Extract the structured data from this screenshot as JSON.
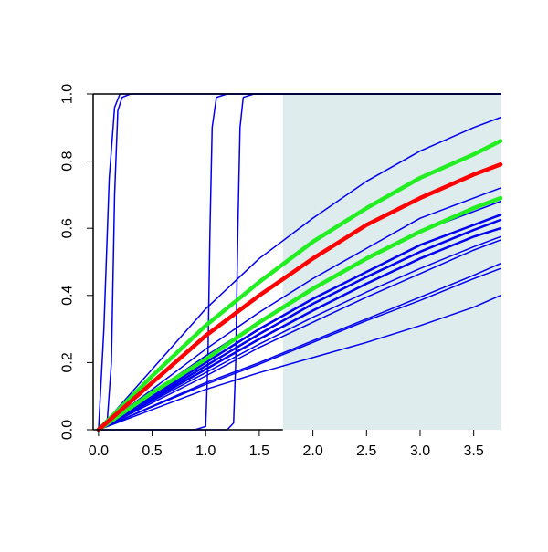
{
  "chart_data": {
    "type": "line",
    "title": "",
    "xlabel": "",
    "ylabel": "",
    "xlim": [
      -0.05,
      3.75
    ],
    "ylim": [
      0,
      1.0
    ],
    "x_ticks": [
      0.0,
      0.5,
      1.0,
      1.5,
      2.0,
      2.5,
      3.0,
      3.5
    ],
    "x_tick_labels": [
      "0.0",
      "0.5",
      "1.0",
      "1.5",
      "2.0",
      "2.5",
      "3.0",
      "3.5"
    ],
    "y_ticks": [
      0.0,
      0.2,
      0.4,
      0.6,
      0.8,
      1.0
    ],
    "y_tick_labels": [
      "0.0",
      "0.2",
      "0.4",
      "0.6",
      "0.8",
      "1.0"
    ],
    "grid": false,
    "legend": "none",
    "shaded_region": {
      "x_from": 1.72,
      "x_to": 3.75,
      "color": "#deeced"
    },
    "colors": {
      "curves": "#0000ee",
      "highlight_red": "#ff0000",
      "highlight_green": "#22ee22",
      "axis": "#000000"
    },
    "series": [
      {
        "color": "#0000ee",
        "width": 1.5,
        "points": [
          [
            0,
            0
          ],
          [
            0.05,
            0.3
          ],
          [
            0.1,
            0.75
          ],
          [
            0.15,
            0.96
          ],
          [
            0.2,
            1.0
          ],
          [
            3.75,
            1.0
          ]
        ]
      },
      {
        "color": "#0000ee",
        "width": 1.5,
        "points": [
          [
            0,
            0
          ],
          [
            0.08,
            0.02
          ],
          [
            0.12,
            0.2
          ],
          [
            0.15,
            0.7
          ],
          [
            0.18,
            0.95
          ],
          [
            0.22,
            0.99
          ],
          [
            0.3,
            1.0
          ],
          [
            3.75,
            1.0
          ]
        ]
      },
      {
        "color": "#0000ee",
        "width": 1.5,
        "points": [
          [
            0,
            0
          ],
          [
            0.9,
            0.0
          ],
          [
            1.0,
            0.01
          ],
          [
            1.02,
            0.2
          ],
          [
            1.04,
            0.6
          ],
          [
            1.06,
            0.9
          ],
          [
            1.1,
            0.99
          ],
          [
            1.2,
            1.0
          ],
          [
            3.75,
            1.0
          ]
        ]
      },
      {
        "color": "#0000ee",
        "width": 1.5,
        "points": [
          [
            0,
            0
          ],
          [
            1.2,
            0.0
          ],
          [
            1.26,
            0.02
          ],
          [
            1.28,
            0.2
          ],
          [
            1.3,
            0.6
          ],
          [
            1.32,
            0.9
          ],
          [
            1.35,
            0.99
          ],
          [
            1.45,
            1.0
          ],
          [
            3.75,
            1.0
          ]
        ]
      },
      {
        "color": "#0000ee",
        "width": 1.5,
        "points": [
          [
            0,
            0
          ],
          [
            0.5,
            0.18
          ],
          [
            1.0,
            0.36
          ],
          [
            1.5,
            0.51
          ],
          [
            2.0,
            0.63
          ],
          [
            2.5,
            0.74
          ],
          [
            3.0,
            0.83
          ],
          [
            3.5,
            0.9
          ],
          [
            3.75,
            0.93
          ]
        ]
      },
      {
        "color": "#0000ee",
        "width": 1.5,
        "points": [
          [
            0,
            0
          ],
          [
            0.5,
            0.12
          ],
          [
            1.0,
            0.24
          ],
          [
            1.5,
            0.35
          ],
          [
            2.0,
            0.45
          ],
          [
            2.5,
            0.54
          ],
          [
            3.0,
            0.63
          ],
          [
            3.5,
            0.69
          ],
          [
            3.75,
            0.72
          ]
        ]
      },
      {
        "color": "#0000ee",
        "width": 1.5,
        "points": [
          [
            0,
            0
          ],
          [
            0.5,
            0.11
          ],
          [
            1.0,
            0.22
          ],
          [
            1.5,
            0.32
          ],
          [
            2.0,
            0.42
          ],
          [
            2.5,
            0.51
          ],
          [
            3.0,
            0.59
          ],
          [
            3.5,
            0.65
          ],
          [
            3.75,
            0.68
          ]
        ]
      },
      {
        "color": "#0000ee",
        "width": 2.5,
        "points": [
          [
            0,
            0
          ],
          [
            0.5,
            0.1
          ],
          [
            1.0,
            0.2
          ],
          [
            1.5,
            0.3
          ],
          [
            2.0,
            0.39
          ],
          [
            2.5,
            0.47
          ],
          [
            3.0,
            0.55
          ],
          [
            3.5,
            0.61
          ],
          [
            3.75,
            0.64
          ]
        ]
      },
      {
        "color": "#0000ee",
        "width": 2.5,
        "points": [
          [
            0,
            0
          ],
          [
            0.5,
            0.095
          ],
          [
            1.0,
            0.19
          ],
          [
            1.5,
            0.285
          ],
          [
            2.0,
            0.375
          ],
          [
            2.5,
            0.455
          ],
          [
            3.0,
            0.53
          ],
          [
            3.5,
            0.595
          ],
          [
            3.75,
            0.625
          ]
        ]
      },
      {
        "color": "#0000ee",
        "width": 2.5,
        "points": [
          [
            0,
            0
          ],
          [
            0.5,
            0.09
          ],
          [
            1.0,
            0.18
          ],
          [
            1.5,
            0.27
          ],
          [
            2.0,
            0.355
          ],
          [
            2.5,
            0.435
          ],
          [
            3.0,
            0.51
          ],
          [
            3.5,
            0.575
          ],
          [
            3.75,
            0.6
          ]
        ]
      },
      {
        "color": "#0000ee",
        "width": 1.5,
        "points": [
          [
            0,
            0
          ],
          [
            0.5,
            0.085
          ],
          [
            1.0,
            0.17
          ],
          [
            1.5,
            0.255
          ],
          [
            2.0,
            0.335
          ],
          [
            2.5,
            0.41
          ],
          [
            3.0,
            0.48
          ],
          [
            3.5,
            0.545
          ],
          [
            3.75,
            0.575
          ]
        ]
      },
      {
        "color": "#0000ee",
        "width": 1.5,
        "points": [
          [
            0,
            0
          ],
          [
            0.5,
            0.08
          ],
          [
            1.0,
            0.16
          ],
          [
            1.5,
            0.245
          ],
          [
            2.0,
            0.32
          ],
          [
            2.5,
            0.395
          ],
          [
            3.0,
            0.465
          ],
          [
            3.5,
            0.535
          ],
          [
            3.75,
            0.565
          ]
        ]
      },
      {
        "color": "#0000ee",
        "width": 1.5,
        "points": [
          [
            0,
            0
          ],
          [
            0.5,
            0.07
          ],
          [
            1.0,
            0.14
          ],
          [
            1.5,
            0.2
          ],
          [
            2.0,
            0.265
          ],
          [
            2.5,
            0.33
          ],
          [
            3.0,
            0.395
          ],
          [
            3.5,
            0.46
          ],
          [
            3.75,
            0.495
          ]
        ]
      },
      {
        "color": "#0000ee",
        "width": 1.5,
        "points": [
          [
            0,
            0
          ],
          [
            0.5,
            0.068
          ],
          [
            1.0,
            0.135
          ],
          [
            1.5,
            0.195
          ],
          [
            2.0,
            0.26
          ],
          [
            2.5,
            0.325
          ],
          [
            3.0,
            0.385
          ],
          [
            3.5,
            0.45
          ],
          [
            3.75,
            0.48
          ]
        ]
      },
      {
        "color": "#0000ee",
        "width": 1.5,
        "points": [
          [
            0,
            0
          ],
          [
            0.5,
            0.06
          ],
          [
            1.0,
            0.12
          ],
          [
            1.5,
            0.17
          ],
          [
            2.0,
            0.215
          ],
          [
            2.5,
            0.26
          ],
          [
            3.0,
            0.31
          ],
          [
            3.5,
            0.365
          ],
          [
            3.75,
            0.4
          ]
        ]
      },
      {
        "color": "#22ee22",
        "width": 4.5,
        "points": [
          [
            0,
            0
          ],
          [
            0.5,
            0.16
          ],
          [
            1.0,
            0.31
          ],
          [
            1.5,
            0.44
          ],
          [
            2.0,
            0.56
          ],
          [
            2.5,
            0.66
          ],
          [
            3.0,
            0.75
          ],
          [
            3.5,
            0.82
          ],
          [
            3.75,
            0.86
          ]
        ]
      },
      {
        "color": "#22ee22",
        "width": 4.5,
        "points": [
          [
            0,
            0
          ],
          [
            0.5,
            0.11
          ],
          [
            1.0,
            0.21
          ],
          [
            1.5,
            0.32
          ],
          [
            2.0,
            0.42
          ],
          [
            2.5,
            0.51
          ],
          [
            3.0,
            0.59
          ],
          [
            3.5,
            0.66
          ],
          [
            3.75,
            0.69
          ]
        ]
      },
      {
        "color": "#ff0000",
        "width": 4.5,
        "points": [
          [
            0,
            0
          ],
          [
            0.5,
            0.14
          ],
          [
            1.0,
            0.28
          ],
          [
            1.5,
            0.4
          ],
          [
            2.0,
            0.51
          ],
          [
            2.5,
            0.61
          ],
          [
            3.0,
            0.69
          ],
          [
            3.5,
            0.76
          ],
          [
            3.75,
            0.79
          ]
        ]
      }
    ]
  }
}
